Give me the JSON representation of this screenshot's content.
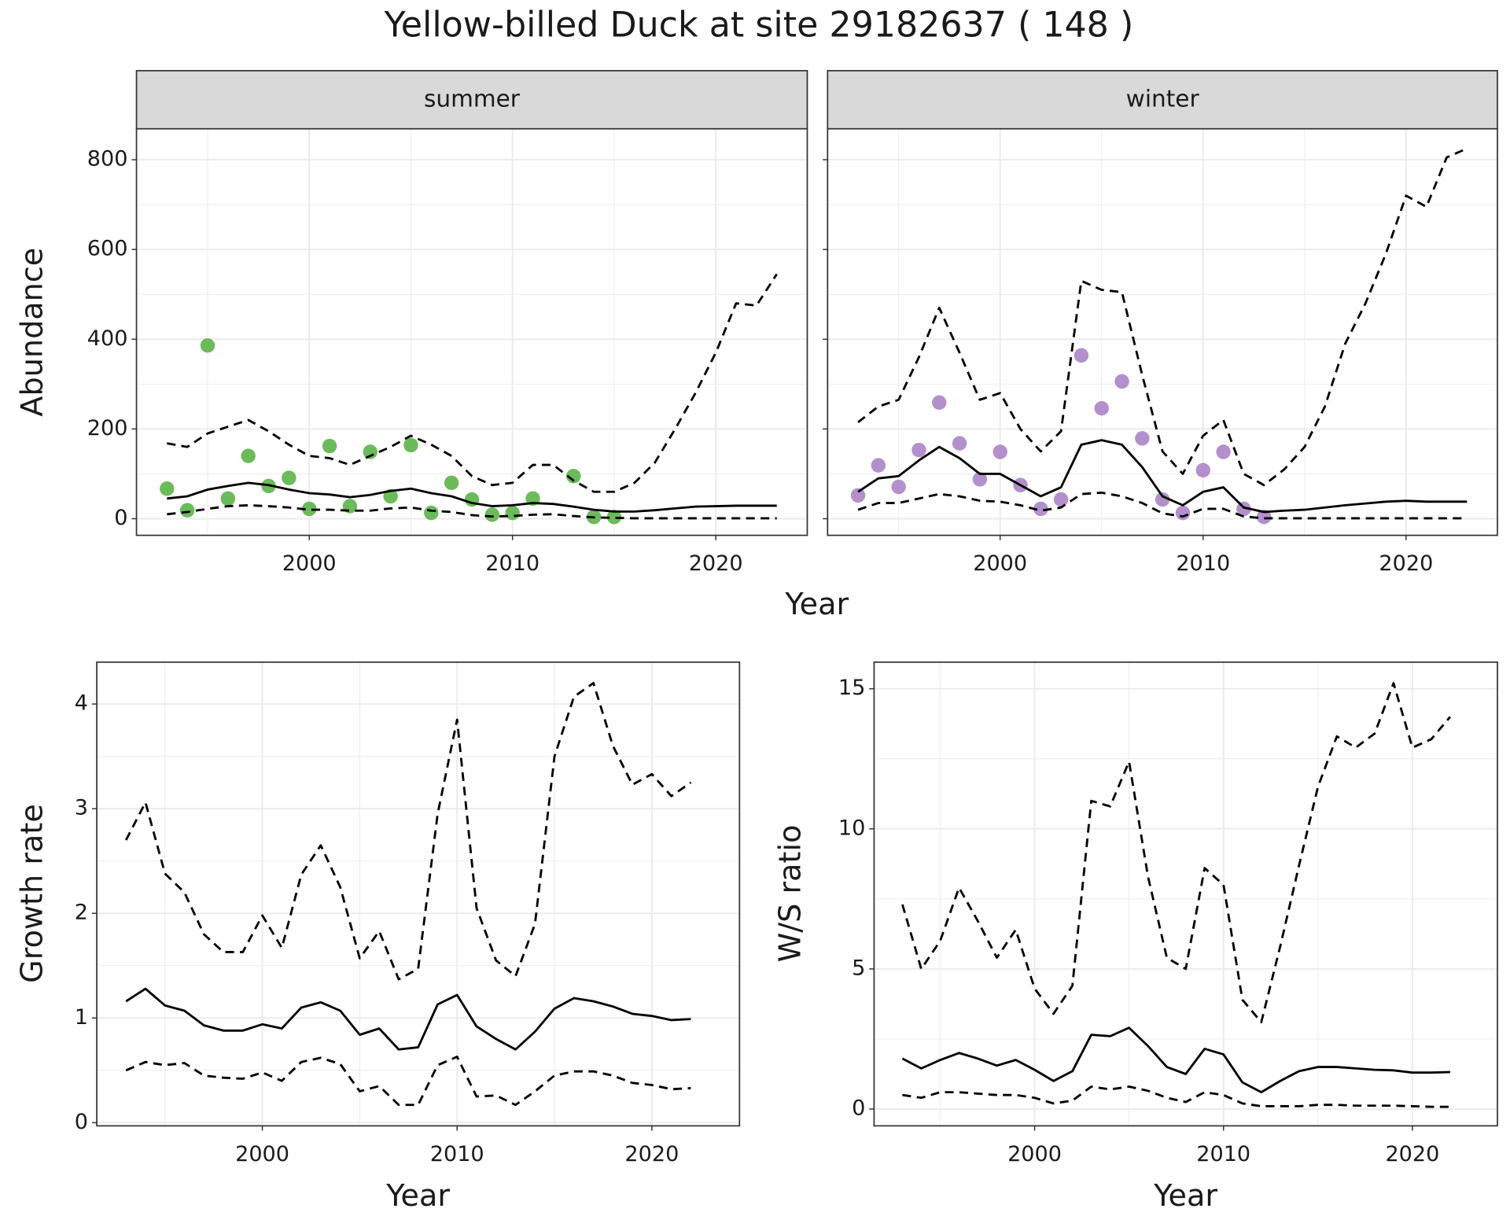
{
  "title": "Yellow-billed Duck at site 29182637 ( 148 )",
  "chart_data": [
    {
      "type": "line",
      "facet": "summer",
      "xlabel": "Year",
      "ylabel": "Abundance",
      "grid": true,
      "minor_grid": true,
      "show_yticklabels": true,
      "x": [
        1993,
        1994,
        1995,
        1996,
        1997,
        1998,
        1999,
        2000,
        2001,
        2002,
        2003,
        2004,
        2005,
        2006,
        2007,
        2008,
        2009,
        2010,
        2011,
        2012,
        2013,
        2014,
        2015,
        2016,
        2017,
        2018,
        2019,
        2020,
        2021,
        2022,
        2023
      ],
      "xlim": [
        1991.5,
        2024.5
      ],
      "xticks": [
        2000,
        2010,
        2020
      ],
      "ylim": [
        -37,
        869
      ],
      "yticks": [
        0,
        200,
        400,
        600,
        800
      ],
      "series": [
        {
          "style": "points",
          "color": "#6cbb5a",
          "values": [
            67,
            19,
            386,
            45,
            140,
            73,
            91,
            22,
            162,
            28,
            149,
            50,
            164,
            13,
            80,
            43,
            9,
            13,
            45,
            null,
            95,
            4,
            4,
            null,
            null,
            null,
            null,
            null,
            null,
            null,
            null
          ]
        },
        {
          "style": "solid",
          "color": "#000000",
          "values": [
            45,
            50,
            65,
            73,
            80,
            75,
            65,
            57,
            54,
            48,
            53,
            62,
            67,
            57,
            50,
            35,
            28,
            30,
            35,
            33,
            27,
            20,
            16,
            16,
            19,
            23,
            27,
            28,
            29,
            29,
            29
          ]
        },
        {
          "style": "dashed",
          "color": "#000000",
          "values": [
            168,
            160,
            190,
            205,
            220,
            195,
            165,
            140,
            135,
            120,
            140,
            160,
            185,
            165,
            140,
            95,
            75,
            80,
            120,
            120,
            85,
            60,
            60,
            80,
            125,
            200,
            280,
            370,
            480,
            475,
            545
          ]
        },
        {
          "style": "dashed",
          "color": "#000000",
          "values": [
            10,
            15,
            22,
            28,
            30,
            28,
            25,
            20,
            20,
            18,
            18,
            23,
            25,
            18,
            15,
            8,
            5,
            6,
            9,
            10,
            6,
            3,
            2,
            1,
            1,
            1,
            1,
            1,
            1,
            1,
            1
          ]
        }
      ]
    },
    {
      "type": "line",
      "facet": "winter",
      "grid": true,
      "minor_grid": true,
      "show_yticklabels": false,
      "x": [
        1993,
        1994,
        1995,
        1996,
        1997,
        1998,
        1999,
        2000,
        2001,
        2002,
        2003,
        2004,
        2005,
        2006,
        2007,
        2008,
        2009,
        2010,
        2011,
        2012,
        2013,
        2014,
        2015,
        2016,
        2017,
        2018,
        2019,
        2020,
        2021,
        2022,
        2023
      ],
      "xlim": [
        1991.5,
        2024.5
      ],
      "xticks": [
        2000,
        2010,
        2020
      ],
      "ylim": [
        -37,
        869
      ],
      "yticks": [
        0,
        200,
        400,
        600,
        800
      ],
      "series": [
        {
          "style": "points",
          "color": "#b390cc",
          "values": [
            52,
            119,
            71,
            153,
            259,
            168,
            88,
            149,
            75,
            22,
            43,
            364,
            246,
            306,
            179,
            43,
            13,
            108,
            149,
            22,
            4,
            null,
            null,
            null,
            null,
            null,
            null,
            null,
            null,
            null,
            null
          ]
        },
        {
          "style": "solid",
          "color": "#000000",
          "values": [
            60,
            90,
            95,
            130,
            160,
            135,
            100,
            100,
            75,
            50,
            70,
            165,
            175,
            165,
            115,
            50,
            30,
            60,
            70,
            25,
            15,
            18,
            20,
            25,
            30,
            34,
            38,
            40,
            38,
            38,
            38
          ]
        },
        {
          "style": "dashed",
          "color": "#000000",
          "values": [
            215,
            250,
            265,
            360,
            470,
            370,
            265,
            280,
            200,
            150,
            195,
            530,
            510,
            505,
            320,
            150,
            100,
            185,
            220,
            100,
            75,
            110,
            160,
            250,
            390,
            480,
            590,
            720,
            695,
            805,
            825
          ]
        },
        {
          "style": "dashed",
          "color": "#000000",
          "values": [
            20,
            35,
            35,
            45,
            55,
            50,
            40,
            38,
            30,
            18,
            25,
            55,
            58,
            50,
            35,
            12,
            5,
            22,
            22,
            5,
            1,
            1,
            1,
            1,
            1,
            1,
            1,
            1,
            1,
            1,
            1
          ]
        }
      ]
    },
    {
      "type": "line",
      "xlabel": "Year",
      "ylabel": "Growth rate",
      "grid": true,
      "minor_grid": true,
      "show_yticklabels": true,
      "x": [
        1993,
        1994,
        1995,
        1996,
        1997,
        1998,
        1999,
        2000,
        2001,
        2002,
        2003,
        2004,
        2005,
        2006,
        2007,
        2008,
        2009,
        2010,
        2011,
        2012,
        2013,
        2014,
        2015,
        2016,
        2017,
        2018,
        2019,
        2020,
        2021,
        2022
      ],
      "xlim": [
        1991.5,
        2024.5
      ],
      "xticks": [
        2000,
        2010,
        2020
      ],
      "ylim": [
        -0.03,
        4.4
      ],
      "yticks": [
        0,
        1,
        2,
        3,
        4
      ],
      "series": [
        {
          "style": "solid",
          "color": "#000000",
          "values": [
            1.16,
            1.28,
            1.12,
            1.07,
            0.93,
            0.88,
            0.88,
            0.94,
            0.9,
            1.1,
            1.15,
            1.07,
            0.84,
            0.9,
            0.7,
            0.72,
            1.13,
            1.22,
            0.92,
            0.8,
            0.7,
            0.87,
            1.09,
            1.19,
            1.16,
            1.11,
            1.04,
            1.02,
            0.98,
            0.99
          ]
        },
        {
          "style": "dashed",
          "color": "#000000",
          "values": [
            2.7,
            3.06,
            2.38,
            2.2,
            1.8,
            1.63,
            1.63,
            1.98,
            1.67,
            2.37,
            2.65,
            2.25,
            1.57,
            1.83,
            1.37,
            1.47,
            2.95,
            3.85,
            2.05,
            1.55,
            1.4,
            1.9,
            3.5,
            4.07,
            4.2,
            3.6,
            3.23,
            3.33,
            3.12,
            3.25
          ]
        },
        {
          "style": "dashed",
          "color": "#000000",
          "values": [
            0.5,
            0.58,
            0.55,
            0.57,
            0.45,
            0.43,
            0.42,
            0.48,
            0.4,
            0.58,
            0.62,
            0.56,
            0.3,
            0.35,
            0.17,
            0.17,
            0.55,
            0.63,
            0.25,
            0.26,
            0.17,
            0.3,
            0.45,
            0.49,
            0.49,
            0.45,
            0.38,
            0.36,
            0.32,
            0.33
          ]
        }
      ]
    },
    {
      "type": "line",
      "xlabel": "Year",
      "ylabel": "W/S ratio",
      "grid": true,
      "minor_grid": true,
      "show_yticklabels": true,
      "x": [
        1993,
        1994,
        1995,
        1996,
        1997,
        1998,
        1999,
        2000,
        2001,
        2002,
        2003,
        2004,
        2005,
        2006,
        2007,
        2008,
        2009,
        2010,
        2011,
        2012,
        2013,
        2014,
        2015,
        2016,
        2017,
        2018,
        2019,
        2020,
        2021,
        2022
      ],
      "xlim": [
        1991.5,
        2024.5
      ],
      "xticks": [
        2000,
        2010,
        2020
      ],
      "ylim": [
        -0.6,
        15.95
      ],
      "yticks": [
        0,
        5,
        10,
        15
      ],
      "series": [
        {
          "style": "solid",
          "color": "#000000",
          "values": [
            1.8,
            1.45,
            1.75,
            2.0,
            1.8,
            1.55,
            1.75,
            1.4,
            1.0,
            1.35,
            2.65,
            2.6,
            2.9,
            2.25,
            1.5,
            1.25,
            2.15,
            1.95,
            0.95,
            0.6,
            1.0,
            1.35,
            1.5,
            1.5,
            1.45,
            1.4,
            1.38,
            1.3,
            1.3,
            1.32
          ]
        },
        {
          "style": "dashed",
          "color": "#000000",
          "values": [
            7.3,
            5.0,
            6.0,
            7.9,
            6.7,
            5.4,
            6.4,
            4.3,
            3.4,
            4.4,
            11.0,
            10.8,
            12.4,
            8.3,
            5.4,
            5.0,
            8.6,
            8.0,
            3.9,
            3.1,
            5.8,
            8.7,
            11.5,
            13.3,
            12.9,
            13.4,
            15.2,
            12.9,
            13.2,
            14.0
          ]
        },
        {
          "style": "dashed",
          "color": "#000000",
          "values": [
            0.5,
            0.4,
            0.6,
            0.6,
            0.55,
            0.5,
            0.5,
            0.4,
            0.2,
            0.3,
            0.8,
            0.7,
            0.8,
            0.65,
            0.4,
            0.25,
            0.6,
            0.5,
            0.2,
            0.1,
            0.1,
            0.1,
            0.15,
            0.15,
            0.12,
            0.12,
            0.12,
            0.1,
            0.08,
            0.08
          ]
        }
      ]
    }
  ]
}
